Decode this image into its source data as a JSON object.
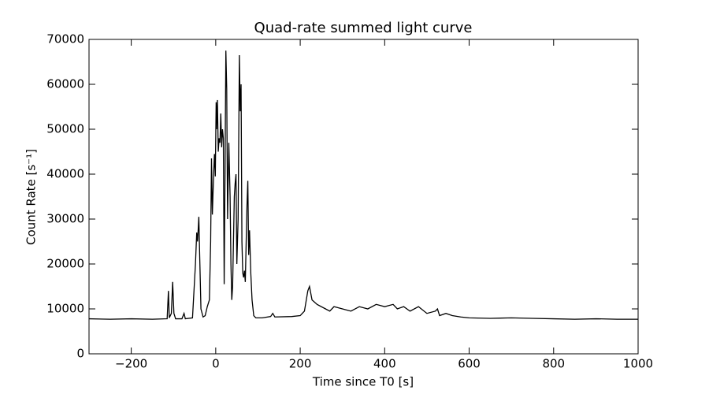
{
  "chart_data": {
    "type": "line",
    "title": "Quad-rate summed light curve",
    "xlabel": "Time since T0 [s]",
    "ylabel": "Count Rate [s⁻¹]",
    "color": "#000000",
    "grid": false,
    "xlim": [
      -300,
      1000
    ],
    "ylim": [
      0,
      70000
    ],
    "xticks": [
      {
        "value": -200,
        "label": "−200"
      },
      0,
      200,
      400,
      600,
      800,
      1000
    ],
    "yticks": [
      0,
      10000,
      20000,
      30000,
      40000,
      50000,
      60000,
      70000
    ],
    "x": [
      -300,
      -250,
      -200,
      -150,
      -115,
      -112,
      -110,
      -105,
      -102,
      -99,
      -95,
      -80,
      -75,
      -72,
      -55,
      -48,
      -45,
      -43,
      -40,
      -38,
      -35,
      -30,
      -25,
      -20,
      -15,
      -12,
      -10,
      -8,
      -5,
      -3,
      -1,
      1,
      2,
      4,
      6,
      8,
      10,
      12,
      14,
      16,
      18,
      20,
      22,
      24,
      26,
      28,
      31,
      34,
      36,
      38,
      40,
      44,
      46,
      48,
      50,
      53,
      56,
      58,
      60,
      62,
      64,
      66,
      68,
      70,
      74,
      76,
      78,
      80,
      83,
      86,
      90,
      95,
      110,
      130,
      135,
      140,
      180,
      200,
      210,
      218,
      222,
      228,
      240,
      260,
      270,
      280,
      300,
      320,
      340,
      360,
      380,
      400,
      420,
      430,
      445,
      460,
      480,
      500,
      520,
      525,
      530,
      545,
      560,
      580,
      600,
      650,
      700,
      750,
      800,
      850,
      900,
      950,
      1000
    ],
    "values": [
      7800,
      7700,
      7800,
      7700,
      7800,
      14000,
      8000,
      9000,
      16000,
      9000,
      7800,
      7800,
      9000,
      7800,
      8000,
      20000,
      27000,
      25000,
      30500,
      22000,
      10000,
      8200,
      8500,
      10500,
      12000,
      25000,
      43500,
      31000,
      40000,
      44500,
      39500,
      56000,
      50000,
      56500,
      45000,
      48000,
      47000,
      53500,
      46000,
      50000,
      48000,
      15500,
      40000,
      67500,
      59000,
      30000,
      47000,
      35000,
      20000,
      12000,
      15000,
      35000,
      38000,
      40000,
      20000,
      30000,
      66500,
      54000,
      60000,
      25000,
      18000,
      17000,
      18500,
      16000,
      33000,
      38500,
      22000,
      27500,
      18000,
      12000,
      8500,
      8000,
      8000,
      8300,
      9000,
      8200,
      8300,
      8500,
      9500,
      14000,
      15000,
      12000,
      11000,
      10000,
      9500,
      10500,
      10000,
      9500,
      10500,
      10000,
      11000,
      10500,
      11000,
      10000,
      10500,
      9500,
      10500,
      9000,
      9500,
      10000,
      8500,
      9000,
      8500,
      8200,
      8000,
      7900,
      8000,
      7900,
      7800,
      7700,
      7800,
      7700,
      7700
    ]
  }
}
